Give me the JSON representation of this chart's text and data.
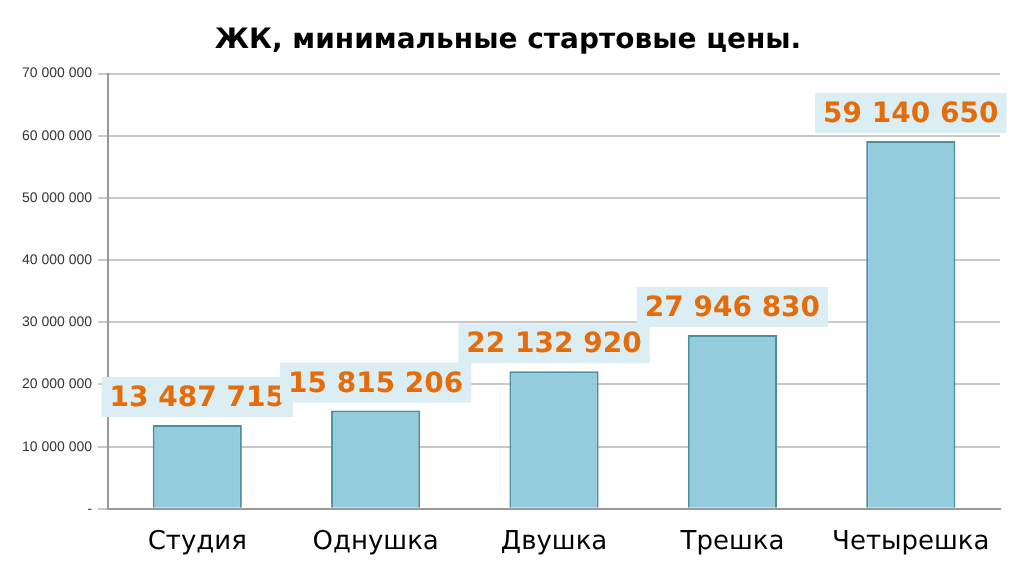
{
  "chart_data": {
    "type": "bar",
    "title": "ЖК, минимальные стартовые цены.",
    "categories": [
      "Студия",
      "Однушка",
      "Двушка",
      "Трешка",
      "Четырешка"
    ],
    "values": [
      13487715,
      15815206,
      22132920,
      27946830,
      59140650
    ],
    "value_labels": [
      "13 487 715",
      "15 815 206",
      "22 132 920",
      "27 946 830",
      "59 140 650"
    ],
    "color": "#93cddd",
    "ylim": [
      0,
      70000000
    ],
    "yticks": [
      {
        "value": 0,
        "label": "-"
      },
      {
        "value": 10000000,
        "label": "10 000 000"
      },
      {
        "value": 20000000,
        "label": "20 000 000"
      },
      {
        "value": 30000000,
        "label": "30 000 000"
      },
      {
        "value": 40000000,
        "label": "40 000 000"
      },
      {
        "value": 50000000,
        "label": "50 000 000"
      },
      {
        "value": 60000000,
        "label": "60 000 000"
      },
      {
        "value": 70000000,
        "label": "70 000 000"
      }
    ],
    "grid": "y",
    "legend": false
  }
}
